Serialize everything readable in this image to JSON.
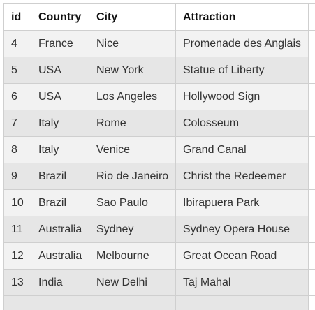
{
  "table": {
    "columns": [
      "id",
      "Country",
      "City",
      "Attraction"
    ],
    "rows": [
      [
        "4",
        "France",
        "Nice",
        "Promenade des Anglais"
      ],
      [
        "5",
        "USA",
        "New York",
        "Statue of Liberty"
      ],
      [
        "6",
        "USA",
        "Los Angeles",
        "Hollywood Sign"
      ],
      [
        "7",
        "Italy",
        "Rome",
        "Colosseum"
      ],
      [
        "8",
        "Italy",
        "Venice",
        "Grand Canal"
      ],
      [
        "9",
        "Brazil",
        "Rio de Janeiro",
        "Christ the Redeemer"
      ],
      [
        "10",
        "Brazil",
        "Sao Paulo",
        "Ibirapuera Park"
      ],
      [
        "11",
        "Australia",
        "Sydney",
        "Sydney Opera House"
      ],
      [
        "12",
        "Australia",
        "Melbourne",
        "Great Ocean Road"
      ],
      [
        "13",
        "India",
        "New Delhi",
        "Taj Mahal"
      ]
    ]
  },
  "colors": {
    "border": "#cfcfcf",
    "row_odd": "#f2f2f2",
    "row_even": "#e6e6e6",
    "text": "#333333"
  }
}
